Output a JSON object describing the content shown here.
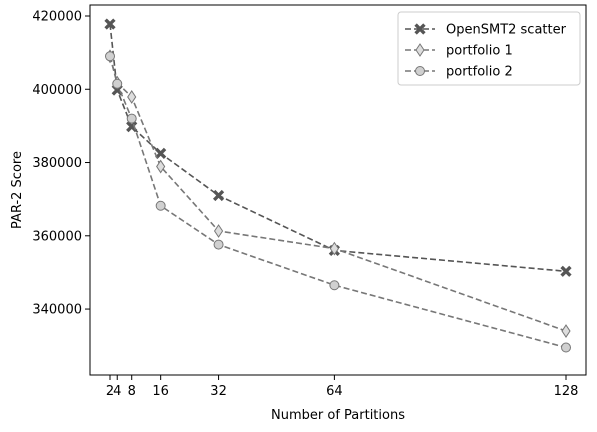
{
  "chart_data": {
    "type": "line",
    "xlabel": "Number of Partitions",
    "ylabel": "PAR-2 Score",
    "x": [
      2,
      4,
      8,
      16,
      32,
      64,
      128
    ],
    "xticks": [
      "2",
      "4",
      "8",
      "16",
      "32",
      "64",
      "128"
    ],
    "yticks": [
      "340000",
      "360000",
      "380000",
      "400000",
      "420000"
    ],
    "ylim": [
      322000,
      423000
    ],
    "grid": false,
    "legend_position": "top-right",
    "series": [
      {
        "name": "OpenSMT2 scatter",
        "marker": "x-filled",
        "color": "#555555",
        "values": [
          417800,
          399800,
          389800,
          382500,
          371000,
          356000,
          350300
        ]
      },
      {
        "name": "portfolio 1",
        "marker": "thin-diamond",
        "color": "#777777",
        "values": [
          409000,
          401800,
          397900,
          378900,
          361300,
          356500,
          334000
        ]
      },
      {
        "name": "portfolio 2",
        "marker": "circle",
        "color": "#777777",
        "values": [
          409000,
          401500,
          392000,
          368200,
          357600,
          346500,
          329500
        ]
      }
    ]
  }
}
